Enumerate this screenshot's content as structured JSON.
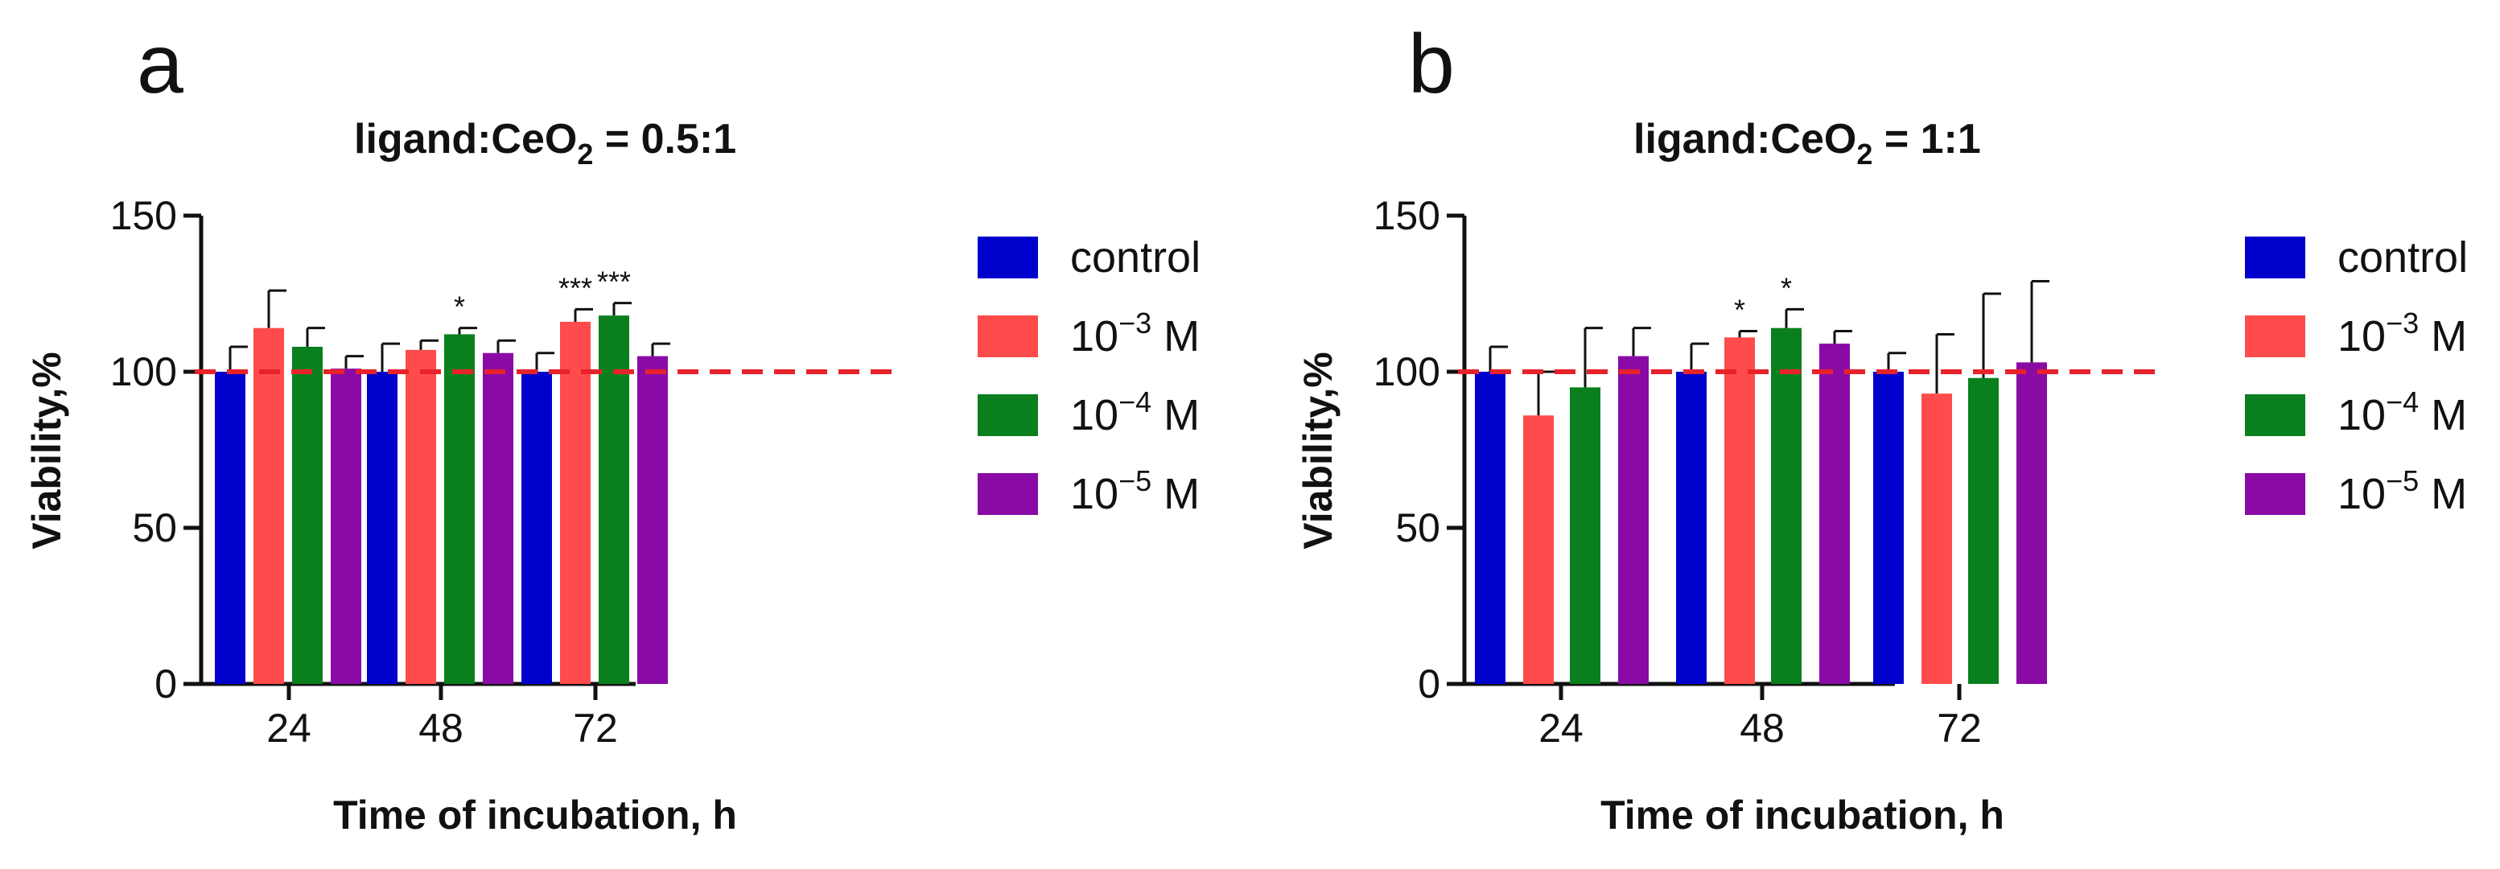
{
  "chart_data": [
    {
      "type": "bar",
      "panel_label": "a",
      "title": "ligand:CeO",
      "title_sub": "2",
      "title_suffix": " = 0.5:1",
      "xlabel": "Time of incubation, h",
      "ylabel": "Viability,%",
      "ylim": [
        0,
        150
      ],
      "yticks": [
        0,
        50,
        100,
        150
      ],
      "reference_line": 100,
      "categories": [
        "24",
        "48",
        "72"
      ],
      "series": [
        {
          "name": "control",
          "color": "#0000cc",
          "values": [
            100,
            100,
            100
          ],
          "errors": [
            8,
            9,
            6
          ],
          "sig": [
            "",
            "",
            ""
          ]
        },
        {
          "name": "10−3 M",
          "color": "#ff4b4b",
          "values": [
            114,
            107,
            116
          ],
          "errors": [
            12,
            3,
            4
          ],
          "sig": [
            "",
            "",
            "***"
          ]
        },
        {
          "name": "10−4 M",
          "color": "#0a7f1e",
          "values": [
            108,
            112,
            118
          ],
          "errors": [
            6,
            2,
            4
          ],
          "sig": [
            "",
            "*",
            "***"
          ]
        },
        {
          "name": "10−5 M",
          "color": "#8a0aa6",
          "values": [
            101,
            106,
            105
          ],
          "errors": [
            4,
            4,
            4
          ],
          "sig": [
            "",
            "",
            ""
          ]
        }
      ]
    },
    {
      "type": "bar",
      "panel_label": "b",
      "title": "ligand:CeO",
      "title_sub": "2",
      "title_suffix": " = 1:1",
      "xlabel": "Time of incubation, h",
      "ylabel": "Viability,%",
      "ylim": [
        0,
        150
      ],
      "yticks": [
        0,
        50,
        100,
        150
      ],
      "reference_line": 100,
      "categories": [
        "24",
        "48",
        "72"
      ],
      "series": [
        {
          "name": "control",
          "color": "#0000cc",
          "values": [
            100,
            100,
            100
          ],
          "errors": [
            8,
            9,
            6
          ],
          "sig": [
            "",
            "",
            ""
          ]
        },
        {
          "name": "10−3 M",
          "color": "#ff4b4b",
          "values": [
            86,
            111,
            93
          ],
          "errors": [
            14,
            2,
            19
          ],
          "sig": [
            "",
            "*",
            ""
          ]
        },
        {
          "name": "10−4 M",
          "color": "#0a7f1e",
          "values": [
            95,
            114,
            98
          ],
          "errors": [
            19,
            6,
            27
          ],
          "sig": [
            "",
            "*",
            ""
          ]
        },
        {
          "name": "10−5 M",
          "color": "#8a0aa6",
          "values": [
            105,
            109,
            103
          ],
          "errors": [
            9,
            4,
            26
          ],
          "sig": [
            "",
            "",
            ""
          ]
        }
      ]
    }
  ]
}
